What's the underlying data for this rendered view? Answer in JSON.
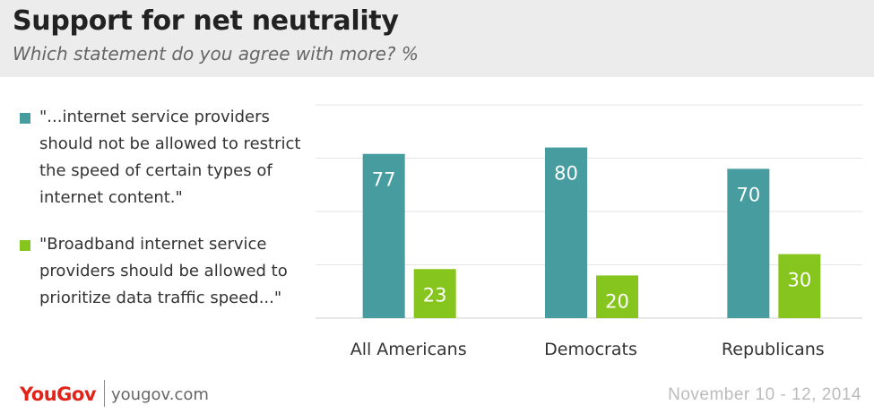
{
  "header": {
    "title": "Support for net neutrality",
    "subtitle": "Which statement do you agree with more? %"
  },
  "legend": [
    {
      "text": "\"...internet service providers should not be allowed to restrict the speed of certain types of internet content.\"",
      "color": "#469c9e"
    },
    {
      "text": "\"Broadband internet service providers should be allowed to prioritize data traffic speed...\"",
      "color": "#86c51d"
    }
  ],
  "chart_data": {
    "type": "bar",
    "categories": [
      "All Americans",
      "Democrats",
      "Republicans"
    ],
    "series": [
      {
        "values": [
          77,
          80,
          70
        ],
        "color": "#469c9e"
      },
      {
        "values": [
          23,
          20,
          30
        ],
        "color": "#86c51d"
      }
    ],
    "ylim": [
      0,
      100
    ],
    "grid": true,
    "data_labels": true
  },
  "footer": {
    "logo": "YouGov",
    "site": "yougov.com",
    "date": "November 10 - 12, 2014"
  }
}
